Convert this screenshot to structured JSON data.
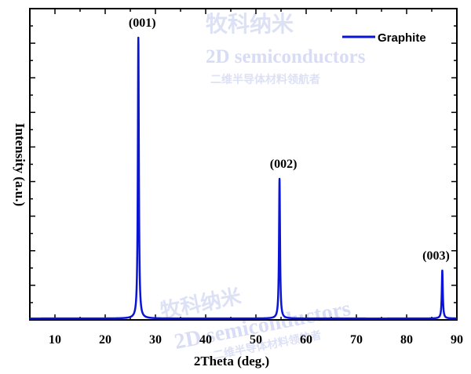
{
  "chart_data": {
    "type": "line",
    "xlabel": "2Theta (deg.)",
    "ylabel": "Intensity (a.u.)",
    "xlim": [
      5,
      90
    ],
    "ylim": [
      0,
      100
    ],
    "xticks": [
      10,
      20,
      30,
      40,
      50,
      60,
      70,
      80,
      90
    ],
    "grid": false,
    "legend_position": "top-right",
    "series": [
      {
        "name": "Graphite",
        "color": "#0a14d6",
        "baseline": 0.5,
        "peaks": [
          {
            "x": 26.6,
            "y": 100,
            "label": "(001)"
          },
          {
            "x": 54.7,
            "y": 50,
            "label": "(002)"
          },
          {
            "x": 87.1,
            "y": 17.5,
            "label": "(003)"
          }
        ]
      }
    ]
  },
  "watermark": {
    "line1": "牧科纳米",
    "line2": "2D semiconductors",
    "line3": "二维半导体材料领航者"
  }
}
